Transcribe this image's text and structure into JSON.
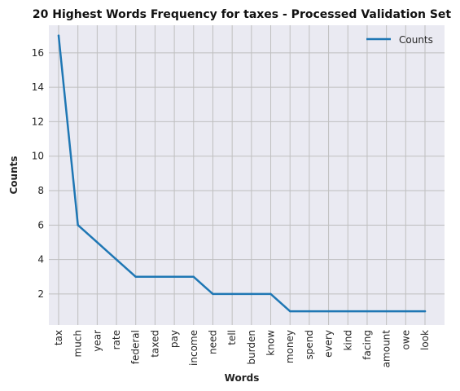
{
  "chart_data": {
    "type": "line",
    "title": "20 Highest Words Frequency for taxes - Processed Validation Set",
    "xlabel": "Words",
    "ylabel": "Counts",
    "categories": [
      "tax",
      "much",
      "year",
      "rate",
      "federal",
      "taxed",
      "pay",
      "income",
      "need",
      "tell",
      "burden",
      "know",
      "money",
      "spend",
      "every",
      "kind",
      "facing",
      "amount",
      "owe",
      "look"
    ],
    "series": [
      {
        "name": "Counts",
        "values": [
          17,
          6,
          5,
          4,
          3,
          3,
          3,
          3,
          2,
          2,
          2,
          2,
          1,
          1,
          1,
          1,
          1,
          1,
          1,
          1
        ]
      }
    ],
    "ylim": [
      0.2,
      17.6
    ],
    "yticks": [
      2,
      4,
      6,
      8,
      10,
      12,
      14,
      16
    ],
    "grid": true,
    "legend": "top-right",
    "colors": {
      "line": "#1f77b4",
      "plot_bg": "#eaeaf2",
      "grid": "#bfbfbf"
    }
  }
}
